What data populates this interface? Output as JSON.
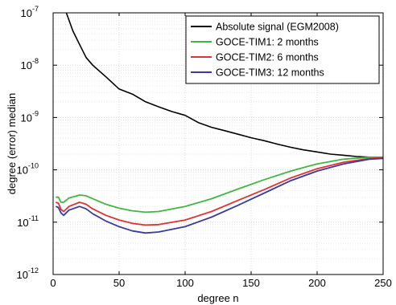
{
  "chart_data": {
    "type": "line",
    "xlabel": "degree n",
    "ylabel": "degree (error) median",
    "xscale": "linear",
    "yscale": "log",
    "xlim": [
      0,
      250
    ],
    "ylim": [
      1e-12,
      1e-07
    ],
    "grid": "on",
    "legend_placement": "top-right",
    "x_ticks": [
      "0",
      "50",
      "100",
      "150",
      "200",
      "250"
    ],
    "y_ticks": [
      {
        "base": "10",
        "exp": "-12"
      },
      {
        "base": "10",
        "exp": "-11"
      },
      {
        "base": "10",
        "exp": "-10"
      },
      {
        "base": "10",
        "exp": "-9"
      },
      {
        "base": "10",
        "exp": "-8"
      },
      {
        "base": "10",
        "exp": "-7"
      }
    ],
    "series": [
      {
        "name": "Absolute signal (EGM2008)",
        "color": "#000000",
        "x": [
          10,
          15,
          20,
          25,
          30,
          40,
          50,
          60,
          70,
          80,
          90,
          100,
          110,
          120,
          130,
          140,
          150,
          160,
          170,
          180,
          190,
          200,
          210,
          220,
          230,
          240,
          250
        ],
        "y": [
          1e-07,
          4.5e-08,
          2.5e-08,
          1.4e-08,
          1e-08,
          6e-09,
          3.5e-09,
          2.8e-09,
          2e-09,
          1.6e-09,
          1.3e-09,
          1.1e-09,
          8e-10,
          6.5e-10,
          5.6e-10,
          4.8e-10,
          4.1e-10,
          3.6e-10,
          3.1e-10,
          2.7e-10,
          2.4e-10,
          2.2e-10,
          2e-10,
          1.9e-10,
          1.8e-10,
          1.75e-10,
          1.75e-10
        ]
      },
      {
        "name": "GOCE-TIM1: 2 months",
        "color": "#3fb83f",
        "x": [
          2,
          4,
          6,
          8,
          12,
          20,
          25,
          30,
          40,
          50,
          60,
          70,
          80,
          100,
          120,
          140,
          160,
          180,
          200,
          220,
          240,
          250
        ],
        "y": [
          3e-11,
          3e-11,
          2.4e-11,
          2.4e-11,
          2.9e-11,
          3.3e-11,
          3.2e-11,
          2.8e-11,
          2.2e-11,
          1.85e-11,
          1.65e-11,
          1.55e-11,
          1.6e-11,
          2e-11,
          2.8e-11,
          4.3e-11,
          6.5e-11,
          9.5e-11,
          1.3e-10,
          1.6e-10,
          1.75e-10,
          1.75e-10
        ]
      },
      {
        "name": "GOCE-TIM2: 6 months",
        "color": "#e53030",
        "x": [
          2,
          4,
          6,
          8,
          12,
          20,
          25,
          30,
          40,
          50,
          60,
          70,
          80,
          100,
          120,
          140,
          160,
          180,
          200,
          220,
          240,
          250
        ],
        "y": [
          2.4e-11,
          2.3e-11,
          1.75e-11,
          1.6e-11,
          2e-11,
          2.4e-11,
          2.2e-11,
          1.8e-11,
          1.35e-11,
          1.1e-11,
          9.5e-12,
          8.8e-12,
          9e-12,
          1.1e-11,
          1.6e-11,
          2.6e-11,
          4.2e-11,
          7e-11,
          1.05e-10,
          1.4e-10,
          1.65e-10,
          1.7e-10
        ]
      },
      {
        "name": "GOCE-TIM3: 12 months",
        "color": "#3a3aa0",
        "x": [
          2,
          4,
          6,
          8,
          12,
          20,
          25,
          30,
          40,
          50,
          60,
          70,
          80,
          100,
          120,
          140,
          160,
          180,
          200,
          220,
          240,
          250
        ],
        "y": [
          2e-11,
          1.9e-11,
          1.5e-11,
          1.35e-11,
          1.7e-11,
          2e-11,
          1.8e-11,
          1.45e-11,
          1.05e-11,
          8.2e-12,
          6.8e-12,
          6.2e-12,
          6.5e-12,
          8.2e-12,
          1.25e-11,
          2.1e-11,
          3.6e-11,
          6.2e-11,
          9.5e-11,
          1.3e-10,
          1.6e-10,
          1.65e-10
        ]
      }
    ]
  }
}
